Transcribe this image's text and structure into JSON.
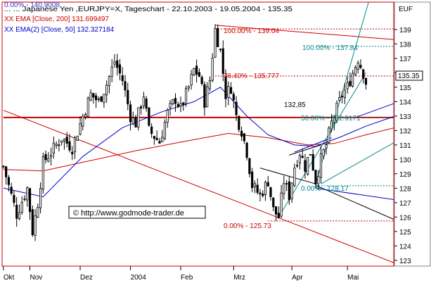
{
  "header": {
    "line1": "0.00% - 140.9008",
    "line2": "... ... Japanese Yen ,EURJPY=X, Tageschart - 22.10.2003 - 19.05.2004 - 135.35",
    "line3": "XX EMA [Close, 200] 131.699497",
    "line4": "XX EMA(2) [Close, 50] 132.327184",
    "corner_label": "EUF",
    "colors": {
      "line1": "#3333cc",
      "line2": "#000000",
      "line3": "#cc0000",
      "line4": "#0000cc"
    }
  },
  "watermark": {
    "text": "© http://www.godmode-trader.de"
  },
  "annotations": {
    "fib_upper": [
      {
        "text": "100.00% - 139.04",
        "value": 139.04,
        "color": "#cc0000"
      },
      {
        "text": "76.40% - 135.777",
        "value": 135.777,
        "color": "#cc0000"
      },
      {
        "text": "0.00% - 125.73",
        "value": 125.73,
        "color": "#cc0000"
      }
    ],
    "fib_lower": [
      {
        "text": "100.00% - 137.84",
        "value": 137.84,
        "color": "#008888"
      },
      {
        "text": "50.00% - 132.9171",
        "value": 132.9171,
        "color": "#008888"
      },
      {
        "text": "0.00% - 128.17",
        "value": 128.17,
        "color": "#008888"
      }
    ],
    "level_label": {
      "text": "132,85",
      "value": 132.85
    },
    "last_price": {
      "text": "135.35",
      "value": 135.35
    }
  },
  "chart_data": {
    "type": "candlestick",
    "x_ticks": [
      "Okt",
      "Nov",
      "Dez",
      "2004",
      "Feb",
      "Mrz",
      "Apr",
      "Mai"
    ],
    "y_ticks": [
      123,
      124,
      125,
      126,
      127,
      128,
      129,
      130,
      131,
      132,
      133,
      134,
      135,
      136,
      137,
      138,
      139
    ],
    "ylim": [
      122.6,
      140.9
    ],
    "n_bars": 148,
    "x_tick_bars": [
      0,
      10,
      29,
      48,
      67,
      87,
      109,
      130
    ],
    "anchors": [
      {
        "bar": 0,
        "price": 129.5
      },
      {
        "bar": 3,
        "price": 127.5
      },
      {
        "bar": 5,
        "price": 126.2
      },
      {
        "bar": 9,
        "price": 128.0
      },
      {
        "bar": 11,
        "price": 125.0
      },
      {
        "bar": 13,
        "price": 127.0
      },
      {
        "bar": 15,
        "price": 129.8
      },
      {
        "bar": 18,
        "price": 130.5
      },
      {
        "bar": 22,
        "price": 131.5
      },
      {
        "bar": 26,
        "price": 130.8
      },
      {
        "bar": 30,
        "price": 133.0
      },
      {
        "bar": 33,
        "price": 134.5
      },
      {
        "bar": 36,
        "price": 134.0
      },
      {
        "bar": 39,
        "price": 135.2
      },
      {
        "bar": 42,
        "price": 136.8
      },
      {
        "bar": 45,
        "price": 135.5
      },
      {
        "bar": 48,
        "price": 133.0
      },
      {
        "bar": 50,
        "price": 132.5
      },
      {
        "bar": 53,
        "price": 134.5
      },
      {
        "bar": 55,
        "price": 132.0
      },
      {
        "bar": 59,
        "price": 131.2
      },
      {
        "bar": 62,
        "price": 133.2
      },
      {
        "bar": 65,
        "price": 134.2
      },
      {
        "bar": 67,
        "price": 133.5
      },
      {
        "bar": 70,
        "price": 135.0
      },
      {
        "bar": 72,
        "price": 136.2
      },
      {
        "bar": 74,
        "price": 135.8
      },
      {
        "bar": 76,
        "price": 134.0
      },
      {
        "bar": 78,
        "price": 135.5
      },
      {
        "bar": 80,
        "price": 139.0
      },
      {
        "bar": 82,
        "price": 137.5
      },
      {
        "bar": 84,
        "price": 134.5
      },
      {
        "bar": 86,
        "price": 135.0
      },
      {
        "bar": 88,
        "price": 133.0
      },
      {
        "bar": 90,
        "price": 132.0
      },
      {
        "bar": 92,
        "price": 130.5
      },
      {
        "bar": 94,
        "price": 128.2
      },
      {
        "bar": 97,
        "price": 127.5
      },
      {
        "bar": 100,
        "price": 128.5
      },
      {
        "bar": 102,
        "price": 126.5
      },
      {
        "bar": 104,
        "price": 126.0
      },
      {
        "bar": 106,
        "price": 128.5
      },
      {
        "bar": 108,
        "price": 127.5
      },
      {
        "bar": 110,
        "price": 129.5
      },
      {
        "bar": 112,
        "price": 130.5
      },
      {
        "bar": 114,
        "price": 129.5
      },
      {
        "bar": 116,
        "price": 130.5
      },
      {
        "bar": 118,
        "price": 128.5
      },
      {
        "bar": 120,
        "price": 130.0
      },
      {
        "bar": 122,
        "price": 131.0
      },
      {
        "bar": 124,
        "price": 132.5
      },
      {
        "bar": 126,
        "price": 133.5
      },
      {
        "bar": 128,
        "price": 134.5
      },
      {
        "bar": 130,
        "price": 135.0
      },
      {
        "bar": 132,
        "price": 136.0
      },
      {
        "bar": 134,
        "price": 137.0
      },
      {
        "bar": 136,
        "price": 136.0
      },
      {
        "bar": 137,
        "price": 135.35
      }
    ],
    "ema200": [
      {
        "bar": 0,
        "price": 129.3
      },
      {
        "bar": 15,
        "price": 129.2
      },
      {
        "bar": 30,
        "price": 129.8
      },
      {
        "bar": 50,
        "price": 130.6
      },
      {
        "bar": 70,
        "price": 131.3
      },
      {
        "bar": 85,
        "price": 131.8
      },
      {
        "bar": 100,
        "price": 131.5
      },
      {
        "bar": 115,
        "price": 131.0
      },
      {
        "bar": 125,
        "price": 131.1
      },
      {
        "bar": 137,
        "price": 131.7
      },
      {
        "bar": 148,
        "price": 132.2
      }
    ],
    "ema50": [
      {
        "bar": 0,
        "price": 128.0
      },
      {
        "bar": 15,
        "price": 127.4
      },
      {
        "bar": 30,
        "price": 130.2
      },
      {
        "bar": 45,
        "price": 132.2
      },
      {
        "bar": 60,
        "price": 133.3
      },
      {
        "bar": 72,
        "price": 134.0
      },
      {
        "bar": 82,
        "price": 135.0
      },
      {
        "bar": 92,
        "price": 133.0
      },
      {
        "bar": 100,
        "price": 131.7
      },
      {
        "bar": 110,
        "price": 131.0
      },
      {
        "bar": 118,
        "price": 130.9
      },
      {
        "bar": 128,
        "price": 131.6
      },
      {
        "bar": 137,
        "price": 132.3
      },
      {
        "bar": 148,
        "price": 133.0
      }
    ],
    "trend_lines": [
      {
        "color": "#cc0000",
        "width": 1,
        "from": {
          "bar": 0,
          "price": 133.4
        },
        "to": {
          "bar": 148,
          "price": 122.8
        }
      },
      {
        "color": "#cc0000",
        "width": 2,
        "from": {
          "bar": 0,
          "price": 132.9
        },
        "to": {
          "bar": 148,
          "price": 132.9
        }
      },
      {
        "color": "#cc0000",
        "width": 1,
        "from": {
          "bar": 80,
          "price": 139.3
        },
        "to": {
          "bar": 148,
          "price": 138.3
        }
      },
      {
        "color": "#008888",
        "width": 1,
        "from": {
          "bar": 104,
          "price": 126.0
        },
        "to": {
          "bar": 137,
          "price": 136.0
        }
      },
      {
        "color": "#008888",
        "width": 1,
        "from": {
          "bar": 118,
          "price": 128.3
        },
        "to": {
          "bar": 138,
          "price": 140.9
        }
      },
      {
        "color": "#008888",
        "width": 1,
        "from": {
          "bar": 120,
          "price": 128.3
        },
        "to": {
          "bar": 148,
          "price": 131.2
        }
      },
      {
        "color": "#000000",
        "width": 1,
        "from": {
          "bar": 97,
          "price": 129.4
        },
        "to": {
          "bar": 118,
          "price": 128.3
        }
      },
      {
        "color": "#000000",
        "width": 1,
        "from": {
          "bar": 118,
          "price": 128.2
        },
        "to": {
          "bar": 148,
          "price": 125.8
        }
      },
      {
        "color": "#000000",
        "width": 1,
        "from": {
          "bar": 108,
          "price": 130.3
        },
        "to": {
          "bar": 120,
          "price": 131.0
        }
      },
      {
        "color": "#0000cc",
        "width": 1,
        "from": {
          "bar": 118,
          "price": 128.0
        },
        "to": {
          "bar": 148,
          "price": 127.2
        }
      },
      {
        "color": "#0000cc",
        "width": 1,
        "from": {
          "bar": 110,
          "price": 130.5
        },
        "to": {
          "bar": 124,
          "price": 131.5
        }
      },
      {
        "color": "#0000cc",
        "width": 1,
        "from": {
          "bar": 133,
          "price": 132.9
        },
        "to": {
          "bar": 148,
          "price": 133.9
        }
      }
    ],
    "dotted_levels": [
      {
        "color": "#cc0000",
        "price": 139.04,
        "from_bar": 80
      },
      {
        "color": "#cc0000",
        "price": 135.777,
        "from_bar": 80
      },
      {
        "color": "#cc0000",
        "price": 125.73,
        "from_bar": 100
      },
      {
        "color": "#008888",
        "price": 137.84,
        "from_bar": 118
      },
      {
        "color": "#008888",
        "price": 132.9171,
        "from_bar": 118
      },
      {
        "color": "#008888",
        "price": 128.17,
        "from_bar": 118
      }
    ]
  }
}
